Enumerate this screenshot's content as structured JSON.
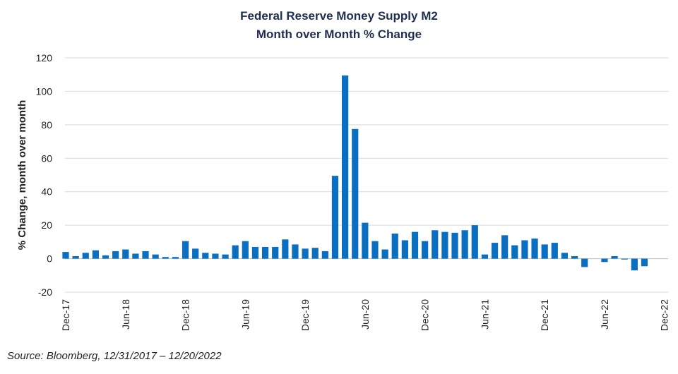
{
  "chart_data": {
    "type": "bar",
    "title": [
      "Federal Reserve Money Supply M2",
      "Month over Month % Change"
    ],
    "xlabel": "",
    "ylabel": "% Change, month over month",
    "ylim": [
      -20,
      120
    ],
    "yticks": [
      -20,
      0,
      20,
      40,
      60,
      80,
      100,
      120
    ],
    "xtick_labels": [
      "Dec-17",
      "Jun-18",
      "Dec-18",
      "Jun-19",
      "Dec-19",
      "Jun-20",
      "Dec-20",
      "Jun-21",
      "Dec-21",
      "Jun-22",
      "Dec-22"
    ],
    "grid": true,
    "bar_color": "#0b6fc1",
    "categories": [
      "Dec-17",
      "Jan-18",
      "Feb-18",
      "Mar-18",
      "Apr-18",
      "May-18",
      "Jun-18",
      "Jul-18",
      "Aug-18",
      "Sep-18",
      "Oct-18",
      "Nov-18",
      "Dec-18",
      "Jan-19",
      "Feb-19",
      "Mar-19",
      "Apr-19",
      "May-19",
      "Jun-19",
      "Jul-19",
      "Aug-19",
      "Sep-19",
      "Oct-19",
      "Nov-19",
      "Dec-19",
      "Jan-20",
      "Feb-20",
      "Mar-20",
      "Apr-20",
      "May-20",
      "Jun-20",
      "Jul-20",
      "Aug-20",
      "Sep-20",
      "Oct-20",
      "Nov-20",
      "Dec-20",
      "Jan-21",
      "Feb-21",
      "Mar-21",
      "Apr-21",
      "May-21",
      "Jun-21",
      "Jul-21",
      "Aug-21",
      "Sep-21",
      "Oct-21",
      "Nov-21",
      "Dec-21",
      "Jan-22",
      "Feb-22",
      "Mar-22",
      "Apr-22",
      "May-22",
      "Jun-22",
      "Jul-22",
      "Aug-22",
      "Sep-22",
      "Oct-22",
      "Nov-22",
      "Dec-22"
    ],
    "values": [
      4,
      1.5,
      3.5,
      5,
      2,
      4.5,
      5.5,
      3,
      4.5,
      2.5,
      1,
      1,
      10.5,
      6,
      3.5,
      3,
      2.5,
      8,
      10.5,
      7,
      7,
      7,
      11.5,
      8.5,
      6,
      6.5,
      4.5,
      49.5,
      109.5,
      77.5,
      21.5,
      10.5,
      5.5,
      15,
      11,
      16,
      10.5,
      17,
      16,
      15.5,
      17,
      20,
      2.5,
      9.5,
      14,
      8,
      11,
      12,
      8.5,
      9.5,
      3.5,
      1.5,
      -5,
      0,
      -2,
      1.5,
      -0.5,
      -7,
      -4.5,
      0,
      0
    ]
  },
  "source": "Source: Bloomberg, 12/31/2017 – 12/20/2022"
}
